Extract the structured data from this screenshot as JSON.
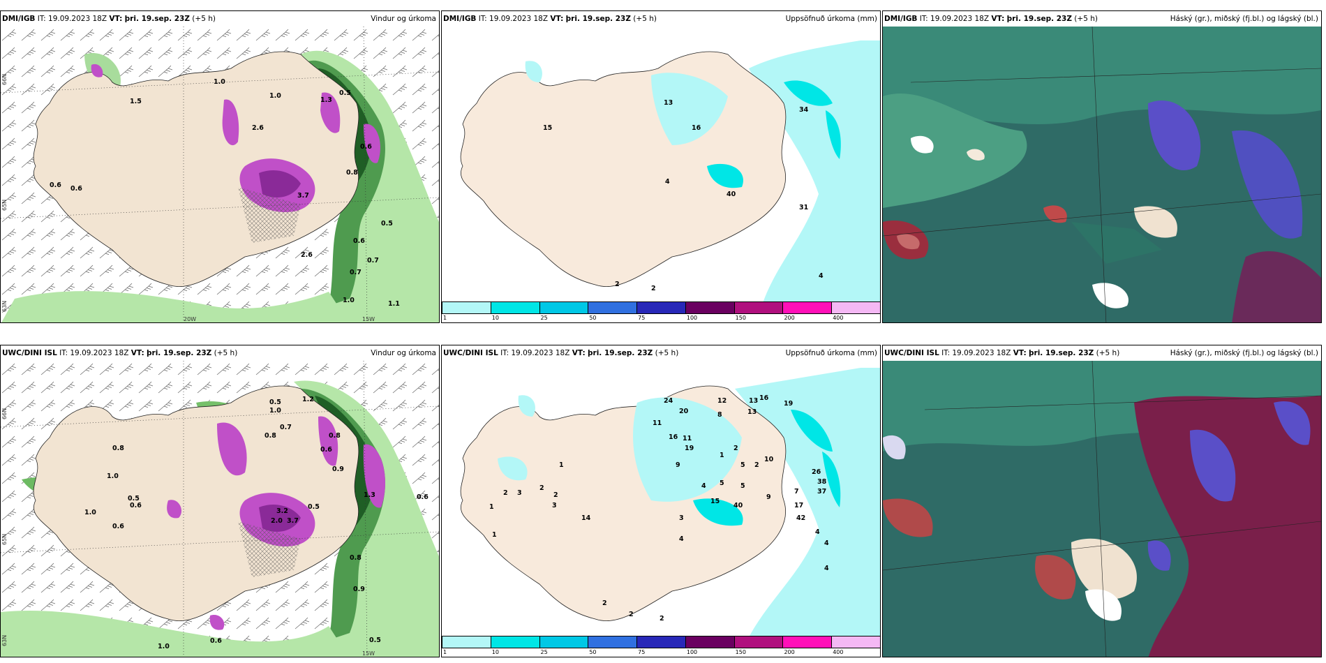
{
  "panels": [
    {
      "model": "DMI/IGB",
      "init_label": "IT:",
      "init": "19.09.2023 18Z",
      "valid_label": "VT:",
      "valid": "þri. 19.sep. 23Z",
      "lead": "(+5 h)",
      "title": "Vindur og úrkoma"
    },
    {
      "model": "DMI/IGB",
      "init_label": "IT:",
      "init": "19.09.2023 18Z",
      "valid_label": "VT:",
      "valid": "þri. 19.sep. 23Z",
      "lead": "(+5 h)",
      "title": "Uppsöfnuð úrkoma (mm)"
    },
    {
      "model": "DMI/IGB",
      "init_label": "IT:",
      "init": "19.09.2023 18Z",
      "valid_label": "VT:",
      "valid": "þri. 19.sep. 23Z",
      "lead": "(+5 h)",
      "title": "Háský (gr.), miðský (fj.bl.) og lágský (bl.)"
    },
    {
      "model": "UWC/DINI ISL",
      "init_label": "IT:",
      "init": "19.09.2023 18Z",
      "valid_label": "VT:",
      "valid": "þri. 19.sep. 23Z",
      "lead": "(+5 h)",
      "title": "Vindur og úrkoma"
    },
    {
      "model": "UWC/DINI ISL",
      "init_label": "IT:",
      "init": "19.09.2023 18Z",
      "valid_label": "VT:",
      "valid": "þri. 19.sep. 23Z",
      "lead": "(+5 h)",
      "title": "Uppsöfnuð úrkoma (mm)"
    },
    {
      "model": "UWC/DINI ISL",
      "init_label": "IT:",
      "init": "19.09.2023 18Z",
      "valid_label": "VT:",
      "valid": "þri. 19.sep. 23Z",
      "lead": "(+5 h)",
      "title": "Háský (gr.), miðský (fj.bl.) og lágský (bl.)"
    }
  ],
  "graticule": {
    "lat1": "66N",
    "lat2": "65N",
    "lat3": "63N",
    "lon1": "20W",
    "lon2": "15W"
  },
  "precip_values_dmi": [
    "1.0",
    "1.0",
    "0.5",
    "0.6",
    "1.3",
    "3.7",
    "0.8",
    "0.5",
    "0.6",
    "0.7",
    "0.7",
    "1.0",
    "1.1",
    "0.6",
    "2.6",
    "0.6",
    "1.5",
    "2.6"
  ],
  "precip_values_uwc": [
    "0.8",
    "1.0",
    "0.5",
    "0.6",
    "0.5",
    "1.2",
    "0.7",
    "1.0",
    "0.8",
    "0.6",
    "1.0",
    "3.2",
    "2.0",
    "3.7",
    "0.9",
    "0.6",
    "0.5",
    "1.3",
    "0.8",
    "0.6",
    "0.8",
    "1.0",
    "0.6",
    "0.9",
    "0.5"
  ],
  "accum_values_dmi": [
    "13",
    "16",
    "34",
    "4",
    "40",
    "31",
    "4",
    "2",
    "2",
    "15"
  ],
  "accum_values_uwc": [
    "11",
    "24",
    "20",
    "12",
    "8",
    "13",
    "16",
    "19",
    "13",
    "16",
    "11",
    "19",
    "2",
    "1",
    "5",
    "2",
    "10",
    "9",
    "4",
    "5",
    "5",
    "9",
    "15",
    "40",
    "7",
    "17",
    "42",
    "4",
    "3",
    "14",
    "3",
    "2",
    "3",
    "2",
    "1",
    "1",
    "1",
    "2",
    "4",
    "2",
    "2",
    "2",
    "4",
    "38",
    "26",
    "37",
    "4"
  ],
  "colorbar": {
    "labels": [
      "1",
      "10",
      "25",
      "50",
      "75",
      "100",
      "150",
      "200",
      "400"
    ],
    "colors": [
      "#b3f7f7",
      "#00e6e6",
      "#00c8e6",
      "#3070e0",
      "#2828b8",
      "#6a0060",
      "#b0107e",
      "#ff10b8",
      "#f4b8f4"
    ]
  }
}
